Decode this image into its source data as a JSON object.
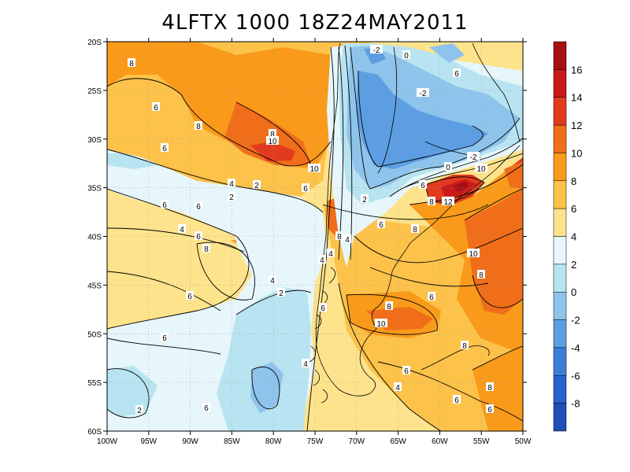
{
  "title": "4LFTX 1000 18Z24MAY2011",
  "map": {
    "lon_ticks": [
      "100W",
      "95W",
      "90W",
      "85W",
      "80W",
      "75W",
      "70W",
      "65W",
      "60W",
      "55W",
      "50W"
    ],
    "lat_ticks": [
      "20S",
      "25S",
      "30S",
      "35S",
      "40S",
      "45S",
      "50S",
      "55S",
      "60S"
    ],
    "grid": "dotted"
  },
  "colorbar": {
    "labels": [
      "16",
      "14",
      "12",
      "10",
      "8",
      "6",
      "4",
      "2",
      "0",
      "-2",
      "-4",
      "-6",
      "-8"
    ],
    "colors": [
      "#a50f15",
      "#c8191b",
      "#e23a1e",
      "#f06e1a",
      "#f99a1a",
      "#fcc24a",
      "#fde38c",
      "#e6f6fb",
      "#b8e3f1",
      "#8ec4ec",
      "#5d9ee3",
      "#3b7fd8",
      "#2464cc",
      "#1f4fb8"
    ]
  },
  "contour_labels": [
    {
      "text": "8"
    },
    {
      "text": "6"
    },
    {
      "text": "8"
    },
    {
      "text": "6"
    },
    {
      "text": "8"
    },
    {
      "text": "10"
    },
    {
      "text": "10"
    },
    {
      "text": "6"
    },
    {
      "text": "4"
    },
    {
      "text": "2"
    },
    {
      "text": "6"
    },
    {
      "text": "6"
    },
    {
      "text": "2"
    },
    {
      "text": "6"
    },
    {
      "text": "4"
    },
    {
      "text": "6"
    },
    {
      "text": "8"
    },
    {
      "text": "6"
    },
    {
      "text": "4"
    },
    {
      "text": "6"
    },
    {
      "text": "2"
    },
    {
      "text": "2"
    },
    {
      "text": "-2"
    },
    {
      "text": "0"
    },
    {
      "text": "-2"
    },
    {
      "text": "6"
    },
    {
      "text": "-2"
    },
    {
      "text": "0"
    },
    {
      "text": "10"
    },
    {
      "text": "6"
    },
    {
      "text": "12"
    },
    {
      "text": "8"
    },
    {
      "text": "2"
    },
    {
      "text": "6"
    },
    {
      "text": "8"
    },
    {
      "text": "8"
    },
    {
      "text": "4"
    },
    {
      "text": "10"
    },
    {
      "text": "8"
    },
    {
      "text": "4"
    },
    {
      "text": "4"
    },
    {
      "text": "6"
    },
    {
      "text": "6"
    },
    {
      "text": "8"
    },
    {
      "text": "10"
    },
    {
      "text": "6"
    },
    {
      "text": "8"
    },
    {
      "text": "6"
    },
    {
      "text": "4"
    },
    {
      "text": "8"
    },
    {
      "text": "6"
    },
    {
      "text": "4"
    }
  ]
}
